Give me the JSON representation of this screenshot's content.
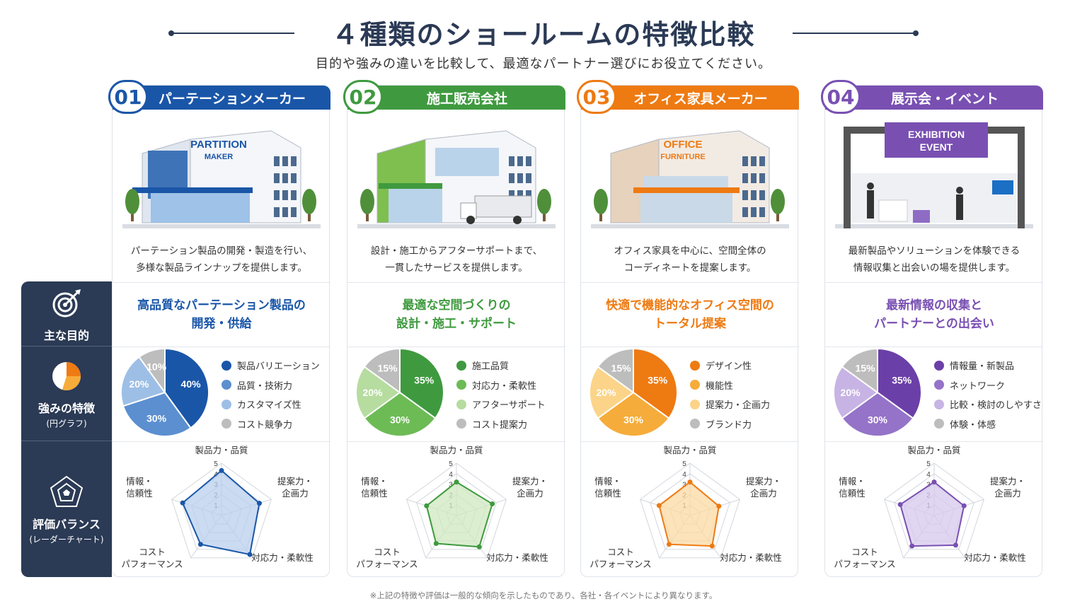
{
  "title": "４種類のショールームの特徴比較",
  "subtitle": "目的や強みの違いを比較して、最適なパートナー選びにお役立てください。",
  "rows": {
    "purpose": "主な目的",
    "strength": "強みの特徴",
    "strength_sub": "(円グラフ)",
    "balance": "評価バランス",
    "balance_sub": "(レーダーチャート)"
  },
  "radar_axes": [
    "製品力・品質",
    "提案力・\n企画力",
    "対応力・柔軟性",
    "コスト\nパフォーマンス",
    "情報・\n信頼性"
  ],
  "radar_ticks": [
    "1",
    "2",
    "3",
    "4",
    "5"
  ],
  "footnote": "※上記の特徴や評価は一般的な傾向を示したものであり、各社・各イベントにより異なります。",
  "cards": [
    {
      "num": "01",
      "name": "パーテーションメーカー",
      "color": "#1a56a8",
      "light": "#b8cfee",
      "sign": [
        "PARTITION",
        "MAKER"
      ],
      "desc": [
        "パーテーション製品の開発・製造を行い、",
        "多様な製品ラインナップを提供します。"
      ],
      "purpose": [
        "高品質なパーテーション製品の",
        "開発・供給"
      ],
      "pie": [
        {
          "label": "製品バリエーション",
          "value": 40,
          "color": "#1a56a8"
        },
        {
          "label": "品質・技術力",
          "value": 30,
          "color": "#5b8fd0"
        },
        {
          "label": "カスタマイズ性",
          "value": 20,
          "color": "#9dbfe6"
        },
        {
          "label": "コスト競争力",
          "value": 10,
          "color": "#bdbdbd"
        }
      ],
      "radar": [
        4.3,
        3.8,
        4.6,
        3.4,
        3.9
      ]
    },
    {
      "num": "02",
      "name": "施工販売会社",
      "color": "#3f9a3f",
      "light": "#cfe8bf",
      "sign": [],
      "desc": [
        "設計・施工からアフターサポートまで、",
        "一貫したサービスを提供します。"
      ],
      "purpose": [
        "最適な空間づくりの",
        "設計・施工・サポート"
      ],
      "pie": [
        {
          "label": "施工品質",
          "value": 35,
          "color": "#3f9a3f"
        },
        {
          "label": "対応力・柔軟性",
          "value": 30,
          "color": "#6dbb55"
        },
        {
          "label": "アフターサポート",
          "value": 20,
          "color": "#b6dca0"
        },
        {
          "label": "コスト提案力",
          "value": 15,
          "color": "#bdbdbd"
        }
      ],
      "radar": [
        3.2,
        3.6,
        3.7,
        3.3,
        3.0
      ]
    },
    {
      "num": "03",
      "name": "オフィス家具メーカー",
      "color": "#ee7a12",
      "light": "#fbd9a3",
      "sign": [
        "OFFICE",
        "FURNITURE"
      ],
      "desc": [
        "オフィス家具を中心に、空間全体の",
        "コーディネートを提案します。"
      ],
      "purpose": [
        "快適で機能的なオフィス空間の",
        "トータル提案"
      ],
      "pie": [
        {
          "label": "デザイン性",
          "value": 35,
          "color": "#ee7a12"
        },
        {
          "label": "機能性",
          "value": 30,
          "color": "#f6ac3a"
        },
        {
          "label": "提案力・企画力",
          "value": 20,
          "color": "#fbd489"
        },
        {
          "label": "ブランド力",
          "value": 15,
          "color": "#bdbdbd"
        }
      ],
      "radar": [
        3.2,
        2.9,
        3.6,
        3.4,
        3.1
      ]
    },
    {
      "num": "04",
      "name": "展示会・イベント",
      "color": "#7950b2",
      "light": "#d6c8ec",
      "sign": [
        "EXHIBITION",
        "EVENT"
      ],
      "desc": [
        "最新製品やソリューションを体験できる",
        "情報収集と出会いの場を提供します。"
      ],
      "purpose": [
        "最新情報の収集と",
        "パートナーとの出会い"
      ],
      "pie": [
        {
          "label": "情報量・新製品",
          "value": 35,
          "color": "#6b3fa8"
        },
        {
          "label": "ネットワーク",
          "value": 30,
          "color": "#9573c8"
        },
        {
          "label": "比較・検討のしやすさ",
          "value": 20,
          "color": "#c7b4e4"
        },
        {
          "label": "体験・体感",
          "value": 15,
          "color": "#bdbdbd"
        }
      ],
      "radar": [
        3.2,
        3.0,
        3.5,
        3.6,
        3.4
      ]
    }
  ]
}
